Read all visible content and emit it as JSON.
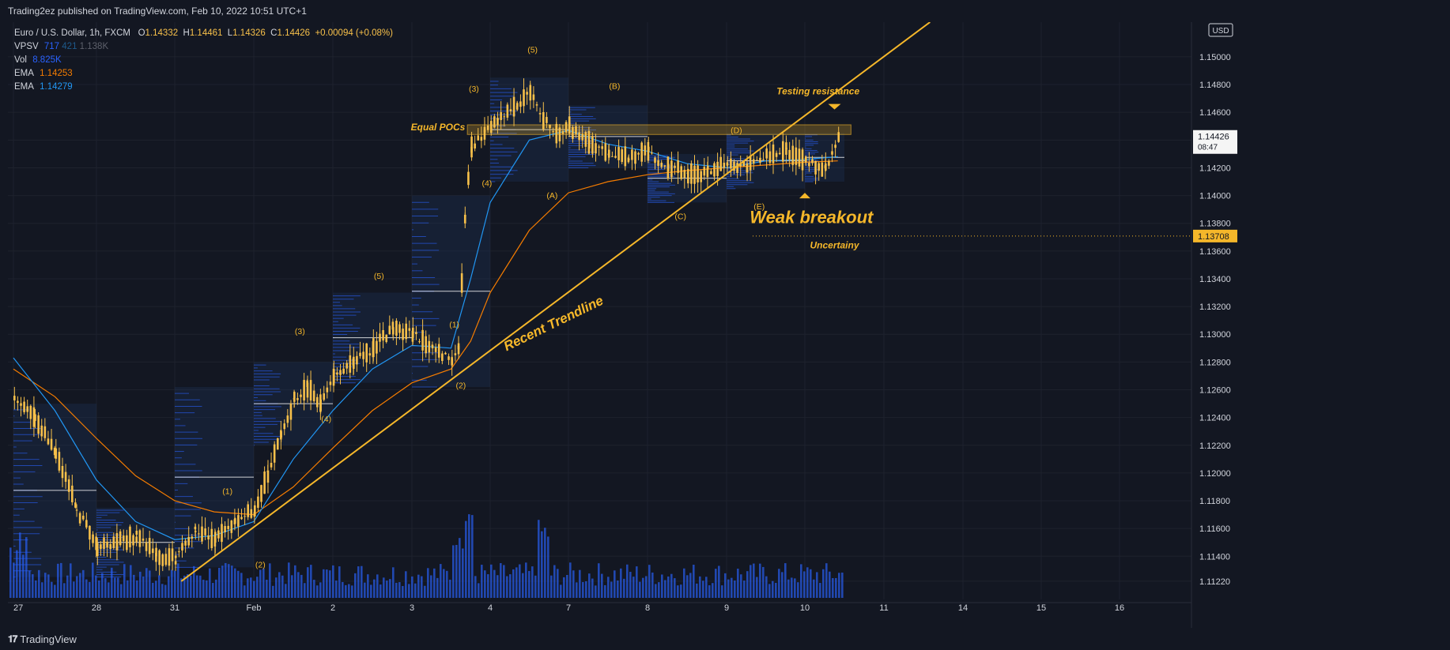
{
  "header": {
    "published": "Trading2ez published on TradingView.com, Feb 10, 2022 10:51 UTC+1"
  },
  "legend": {
    "symbol": "Euro / U.S. Dollar, 1h, FXCM",
    "ohlc": {
      "o_label": "O",
      "o": "1.14332",
      "h_label": "H",
      "h": "1.14461",
      "l_label": "L",
      "l": "1.14326",
      "c_label": "C",
      "c": "1.14426",
      "change": "+0.00094 (+0.08%)"
    },
    "vpsv": {
      "label": "VPSV",
      "v1": "717",
      "v2": "421",
      "v3": "1.138K"
    },
    "vol": {
      "label": "Vol",
      "value": "8.825K"
    },
    "ema1": {
      "label": "EMA",
      "value": "1.14253"
    },
    "ema2": {
      "label": "EMA",
      "value": "1.14279"
    }
  },
  "colors": {
    "bg": "#131722",
    "grid": "#1e222d",
    "candle": "#f7c04a",
    "ema_fast": "#2196f3",
    "ema_slow": "#f57c00",
    "volume": "#2962ff",
    "profile": "#2962ff",
    "annotation": "#f5b72a",
    "text": "#d1d4dc",
    "up": "#f7c04a",
    "down_price": "#26a69a"
  },
  "annotations": {
    "equal_pocs": "Equal POCs",
    "testing_resistance": "Testing resistance",
    "weak_breakout": "Weak breakout",
    "uncertainty": "Uncertainy",
    "trendline": "Recent Trendline",
    "waves": [
      {
        "t": "(1)",
        "x": "Jan 31 16:00",
        "y": 1.1185
      },
      {
        "t": "(2)",
        "x": "Feb 1 02:00",
        "y": 1.1132
      },
      {
        "t": "(3)",
        "x": "Feb 1 14:00",
        "y": 1.13
      },
      {
        "t": "(4)",
        "x": "Feb 1 22:00",
        "y": 1.1237
      },
      {
        "t": "(5)",
        "x": "Feb 2 14:00",
        "y": 1.134
      },
      {
        "t": "(1)",
        "x": "Feb 3 13:00",
        "y": 1.1305
      },
      {
        "t": "(2)",
        "x": "Feb 3 15:00",
        "y": 1.1261
      },
      {
        "t": "(3)",
        "x": "Feb 3 19:00",
        "y": 1.1475
      },
      {
        "t": "(4)",
        "x": "Feb 3 23:00",
        "y": 1.1407
      },
      {
        "t": "(5)",
        "x": "Feb 4 13:00",
        "y": 1.1503
      },
      {
        "t": "(A)",
        "x": "Feb 4 19:00",
        "y": 1.1398
      },
      {
        "t": "(B)",
        "x": "Feb 7 14:00",
        "y": 1.1477
      },
      {
        "t": "(C)",
        "x": "Feb 8 10:00",
        "y": 1.1383
      },
      {
        "t": "(D)",
        "x": "Feb 9 03:00",
        "y": 1.1445
      },
      {
        "t": "(E)",
        "x": "Feb 9 10:00",
        "y": 1.139
      }
    ]
  },
  "chart_data": {
    "type": "candlestick",
    "symbol": "EURUSD",
    "timeframe": "1h",
    "x_labels": [
      "27",
      "28",
      "31",
      "Feb",
      "2",
      "3",
      "4",
      "7",
      "8",
      "9",
      "10",
      "11",
      "14",
      "15",
      "16"
    ],
    "y_ticks": [
      1.1122,
      1.114,
      1.116,
      1.118,
      1.12,
      1.122,
      1.124,
      1.126,
      1.128,
      1.13,
      1.132,
      1.134,
      1.136,
      1.138,
      1.14,
      1.142,
      1.144,
      1.146,
      1.148,
      1.15
    ],
    "y_tick_labels": [
      "1.11220",
      "1.11400",
      "1.11600",
      "1.11800",
      "1.12000",
      "1.12200",
      "1.12400",
      "1.12600",
      "1.12800",
      "1.13000",
      "1.13200",
      "1.13400",
      "1.13600",
      "1.13800",
      "1.14000",
      "1.14200",
      "1.14400",
      "1.14600",
      "1.14800",
      "1.15000"
    ],
    "ylim": [
      1.111,
      1.1525
    ],
    "price_path": [
      [
        "Jan 27 00:00",
        1.1255
      ],
      [
        "Jan 27 06:00",
        1.124
      ],
      [
        "Jan 27 12:00",
        1.1215
      ],
      [
        "Jan 27 18:00",
        1.1175
      ],
      [
        "Jan 28 00:00",
        1.1148
      ],
      [
        "Jan 28 06:00",
        1.115
      ],
      [
        "Jan 28 12:00",
        1.1155
      ],
      [
        "Jan 28 18:00",
        1.1142
      ],
      [
        "Jan 31 00:00",
        1.1138
      ],
      [
        "Jan 31 06:00",
        1.116
      ],
      [
        "Jan 31 12:00",
        1.1152
      ],
      [
        "Jan 31 18:00",
        1.1165
      ],
      [
        "Feb 1 00:00",
        1.1172
      ],
      [
        "Feb 1 04:00",
        1.12
      ],
      [
        "Feb 1 08:00",
        1.1228
      ],
      [
        "Feb 1 12:00",
        1.1252
      ],
      [
        "Feb 1 16:00",
        1.1262
      ],
      [
        "Feb 1 20:00",
        1.125
      ],
      [
        "Feb 2 00:00",
        1.1268
      ],
      [
        "Feb 2 06:00",
        1.128
      ],
      [
        "Feb 2 12:00",
        1.129
      ],
      [
        "Feb 2 18:00",
        1.1305
      ],
      [
        "Feb 3 00:00",
        1.13
      ],
      [
        "Feb 3 06:00",
        1.129
      ],
      [
        "Feb 3 12:00",
        1.1282
      ],
      [
        "Feb 3 14:00",
        1.129
      ],
      [
        "Feb 3 16:00",
        1.1385
      ],
      [
        "Feb 3 18:00",
        1.1435
      ],
      [
        "Feb 3 22:00",
        1.1445
      ],
      [
        "Feb 4 02:00",
        1.1455
      ],
      [
        "Feb 4 08:00",
        1.1465
      ],
      [
        "Feb 4 12:00",
        1.1475
      ],
      [
        "Feb 4 16:00",
        1.1455
      ],
      [
        "Feb 4 20:00",
        1.1445
      ],
      [
        "Feb 7 00:00",
        1.145
      ],
      [
        "Feb 7 06:00",
        1.1438
      ],
      [
        "Feb 7 12:00",
        1.143
      ],
      [
        "Feb 7 18:00",
        1.1428
      ],
      [
        "Feb 8 00:00",
        1.1432
      ],
      [
        "Feb 8 06:00",
        1.142
      ],
      [
        "Feb 8 12:00",
        1.1415
      ],
      [
        "Feb 8 18:00",
        1.1418
      ],
      [
        "Feb 9 00:00",
        1.1422
      ],
      [
        "Feb 9 06:00",
        1.142
      ],
      [
        "Feb 9 12:00",
        1.143
      ],
      [
        "Feb 9 18:00",
        1.1432
      ],
      [
        "Feb 10 00:00",
        1.1425
      ],
      [
        "Feb 10 06:00",
        1.142
      ],
      [
        "Feb 10 10:00",
        1.1443
      ]
    ],
    "ema_fast": [
      [
        "Jan 27 00:00",
        1.1283
      ],
      [
        "Jan 27 12:00",
        1.1245
      ],
      [
        "Jan 28 00:00",
        1.1195
      ],
      [
        "Jan 28 12:00",
        1.1165
      ],
      [
        "Jan 31 00:00",
        1.1152
      ],
      [
        "Jan 31 12:00",
        1.1155
      ],
      [
        "Feb 1 00:00",
        1.1165
      ],
      [
        "Feb 1 12:00",
        1.121
      ],
      [
        "Feb 2 00:00",
        1.1245
      ],
      [
        "Feb 2 12:00",
        1.1275
      ],
      [
        "Feb 3 00:00",
        1.1292
      ],
      [
        "Feb 3 12:00",
        1.129
      ],
      [
        "Feb 3 18:00",
        1.134
      ],
      [
        "Feb 4 00:00",
        1.1395
      ],
      [
        "Feb 4 12:00",
        1.144
      ],
      [
        "Feb 7 00:00",
        1.1447
      ],
      [
        "Feb 7 12:00",
        1.1437
      ],
      [
        "Feb 8 00:00",
        1.1432
      ],
      [
        "Feb 8 12:00",
        1.1423
      ],
      [
        "Feb 9 00:00",
        1.142
      ],
      [
        "Feb 9 12:00",
        1.1425
      ],
      [
        "Feb 10 00:00",
        1.1426
      ],
      [
        "Feb 10 10:00",
        1.1428
      ]
    ],
    "ema_slow": [
      [
        "Jan 27 00:00",
        1.1275
      ],
      [
        "Jan 27 12:00",
        1.1255
      ],
      [
        "Jan 28 00:00",
        1.1225
      ],
      [
        "Jan 28 12:00",
        1.1198
      ],
      [
        "Jan 31 00:00",
        1.118
      ],
      [
        "Jan 31 12:00",
        1.1172
      ],
      [
        "Feb 1 00:00",
        1.117
      ],
      [
        "Feb 1 12:00",
        1.119
      ],
      [
        "Feb 2 00:00",
        1.1218
      ],
      [
        "Feb 2 12:00",
        1.1245
      ],
      [
        "Feb 3 00:00",
        1.1265
      ],
      [
        "Feb 3 12:00",
        1.1275
      ],
      [
        "Feb 3 18:00",
        1.1295
      ],
      [
        "Feb 4 00:00",
        1.133
      ],
      [
        "Feb 4 12:00",
        1.1375
      ],
      [
        "Feb 7 00:00",
        1.1402
      ],
      [
        "Feb 7 12:00",
        1.141
      ],
      [
        "Feb 8 00:00",
        1.1415
      ],
      [
        "Feb 8 12:00",
        1.1418
      ],
      [
        "Feb 9 00:00",
        1.142
      ],
      [
        "Feb 9 12:00",
        1.1422
      ],
      [
        "Feb 10 00:00",
        1.1424
      ],
      [
        "Feb 10 10:00",
        1.1425
      ]
    ],
    "poc_zone": {
      "from": "Feb 3 17:00",
      "to": "Feb 10 14:00",
      "y_low": 1.1444,
      "y_high": 1.1451
    },
    "trendline": {
      "from": [
        "Jan 31 02:00",
        1.1122
      ],
      "to": [
        "Feb 11 14:00",
        1.1525
      ]
    },
    "price_marks": {
      "current": "1.14426",
      "countdown": "08:47",
      "level": "1.13708",
      "currency": "USD"
    },
    "volume_max": 1.0
  },
  "footer": {
    "brand": "TradingView"
  }
}
